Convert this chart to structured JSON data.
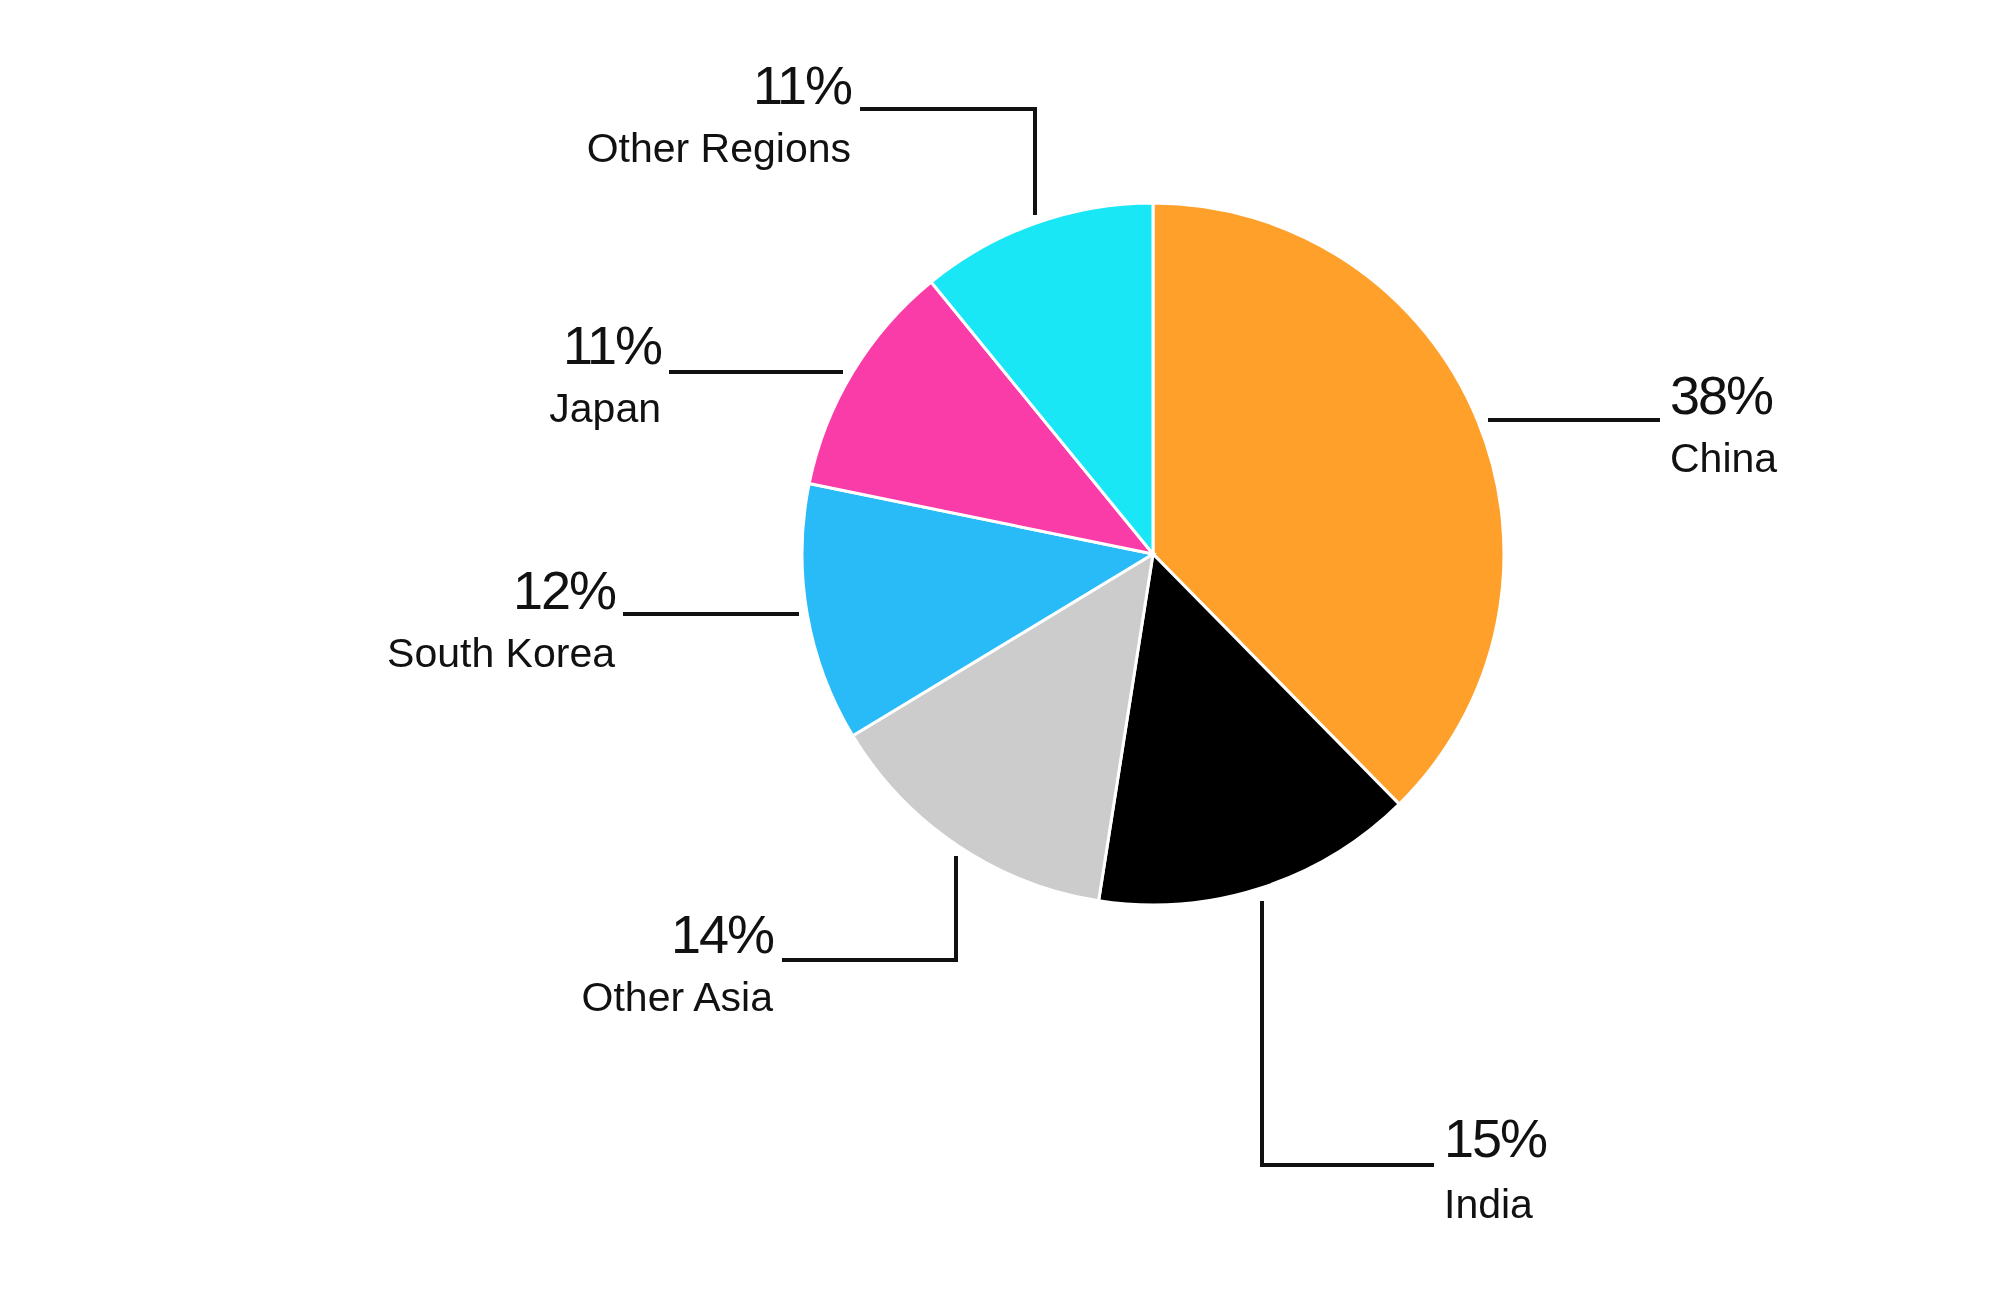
{
  "chart_data": {
    "type": "pie",
    "categories": [
      "China",
      "India",
      "Other Asia",
      "South Korea",
      "Japan",
      "Other Regions"
    ],
    "values": [
      38,
      15,
      14,
      12,
      11,
      11
    ],
    "value_labels": [
      "38%",
      "15%",
      "14%",
      "12%",
      "11%",
      "11%"
    ],
    "colors": [
      "#ffa02b",
      "#000000",
      "#cccccc",
      "#29bbf7",
      "#f93ca8",
      "#1ae7f5"
    ]
  }
}
